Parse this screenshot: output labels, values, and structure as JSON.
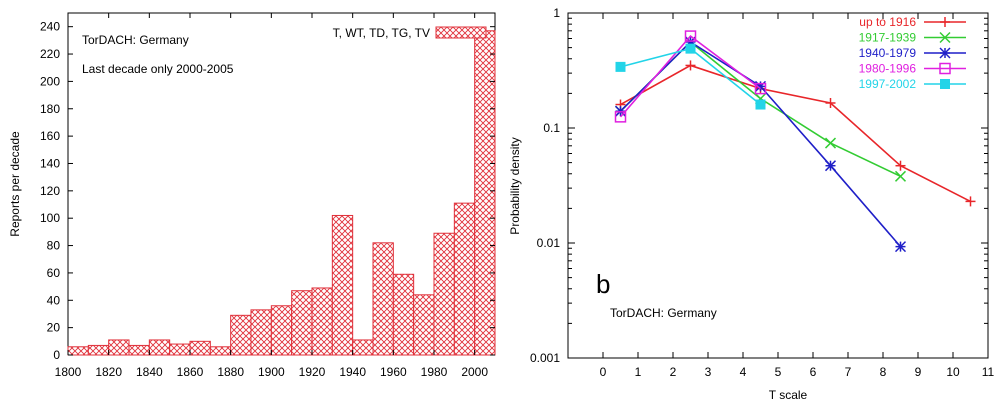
{
  "chart_data": [
    {
      "type": "bar",
      "ylabel": "Reports per decade",
      "annotations": [
        "TorDACH: Germany",
        "Last decade only 2000-2005"
      ],
      "legend": {
        "label": "T, WT, TD, TG, TV",
        "position": "top-right"
      },
      "xlim": [
        1800,
        2010
      ],
      "ylim": [
        0,
        250
      ],
      "xticks": [
        1800,
        1820,
        1840,
        1860,
        1880,
        1900,
        1920,
        1940,
        1960,
        1980,
        2000
      ],
      "yticks": [
        0,
        20,
        40,
        60,
        80,
        100,
        120,
        140,
        160,
        180,
        200,
        220,
        240
      ],
      "bar_width": 10,
      "bars": [
        {
          "x": 1800,
          "value": 6
        },
        {
          "x": 1810,
          "value": 7
        },
        {
          "x": 1820,
          "value": 11
        },
        {
          "x": 1830,
          "value": 7
        },
        {
          "x": 1840,
          "value": 11
        },
        {
          "x": 1850,
          "value": 8
        },
        {
          "x": 1860,
          "value": 10
        },
        {
          "x": 1870,
          "value": 6
        },
        {
          "x": 1880,
          "value": 29
        },
        {
          "x": 1890,
          "value": 33
        },
        {
          "x": 1900,
          "value": 36
        },
        {
          "x": 1910,
          "value": 47
        },
        {
          "x": 1920,
          "value": 49
        },
        {
          "x": 1930,
          "value": 102
        },
        {
          "x": 1940,
          "value": 11
        },
        {
          "x": 1950,
          "value": 82
        },
        {
          "x": 1960,
          "value": 59
        },
        {
          "x": 1970,
          "value": 44
        },
        {
          "x": 1980,
          "value": 89
        },
        {
          "x": 1990,
          "value": 111
        },
        {
          "x": 2000,
          "value": 237
        }
      ],
      "color": "#e0303a",
      "grid": false
    },
    {
      "type": "line",
      "xlabel": "T scale",
      "ylabel": "Probability density",
      "panel_label": "b",
      "annotation": "TorDACH: Germany",
      "xlim": [
        -1,
        11
      ],
      "ylim": [
        0.001,
        1
      ],
      "yscale": "log",
      "xticks": [
        0,
        1,
        2,
        3,
        4,
        5,
        6,
        7,
        8,
        9,
        10,
        11
      ],
      "yticks": [
        0.001,
        0.01,
        0.1,
        1
      ],
      "ytick_labels": [
        "0.001",
        "0.01",
        "0.1",
        "1"
      ],
      "legend_position": "top-right",
      "grid": false,
      "series": [
        {
          "name": "up to 1916",
          "color": "#e8262a",
          "marker": "plus",
          "x": [
            0.5,
            2.5,
            4.5,
            6.5,
            8.5,
            10.5
          ],
          "y": [
            0.16,
            0.35,
            0.22,
            0.165,
            0.047,
            0.023
          ]
        },
        {
          "name": "1917-1939",
          "color": "#33cc33",
          "marker": "x",
          "x": [
            0.5,
            2.5,
            4.5,
            6.5,
            8.5
          ],
          "y": [
            0.14,
            0.56,
            0.18,
            0.074,
            0.038
          ]
        },
        {
          "name": "1940-1979",
          "color": "#1f1fc8",
          "marker": "star",
          "x": [
            0.5,
            2.5,
            4.5,
            6.5,
            8.5
          ],
          "y": [
            0.14,
            0.56,
            0.23,
            0.047,
            0.0093
          ]
        },
        {
          "name": "1980-1996",
          "color": "#e020e0",
          "marker": "square-open",
          "x": [
            0.5,
            2.5,
            4.5
          ],
          "y": [
            0.125,
            0.63,
            0.22
          ]
        },
        {
          "name": "1997-2002",
          "color": "#22d4e8",
          "marker": "square-filled",
          "x": [
            0.5,
            2.5,
            4.5
          ],
          "y": [
            0.34,
            0.49,
            0.16
          ]
        }
      ]
    }
  ]
}
